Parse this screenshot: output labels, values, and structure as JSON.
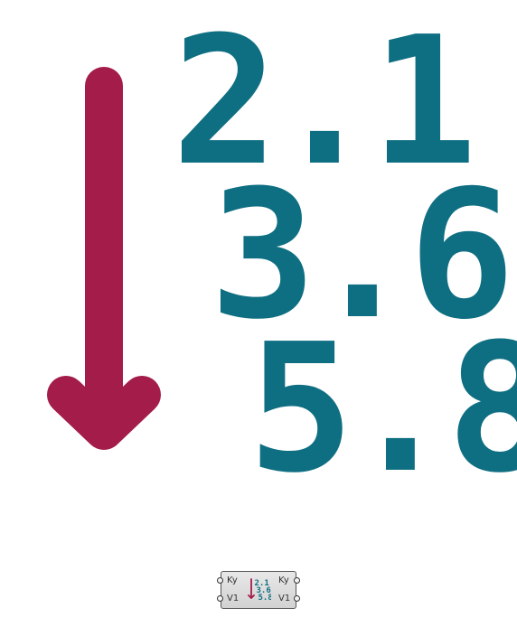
{
  "colors": {
    "arrow": "#a31c4a",
    "numbers": "#0f6f82",
    "node_border": "#555555",
    "node_text": "#333333"
  },
  "hero": {
    "icon": "sort-descending-arrow-icon",
    "values": [
      "2.1",
      "3.6",
      "5.8"
    ]
  },
  "component": {
    "inputs": [
      "Ky",
      "V1"
    ],
    "outputs": [
      "Ky",
      "V1"
    ],
    "icon": "sort-list-icon",
    "icon_values": [
      "2.1",
      "3.6",
      "5.8"
    ]
  }
}
